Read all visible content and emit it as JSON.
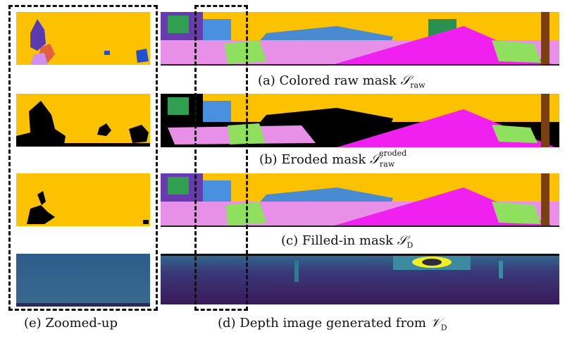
{
  "captions": {
    "a_text": "(a) Colored raw mask ",
    "a_sym": "𝒮",
    "a_sub": "raw",
    "b_text": "(b) Eroded mask ",
    "b_sym": "𝒮",
    "b_sub": "raw",
    "b_sup": "eroded",
    "c_text": "(c) Filled-in mask ",
    "c_sym": "𝒮",
    "c_sub": "D",
    "d_text": "(d) Depth image generated from ",
    "d_sym": "𝒱",
    "d_sub": "D",
    "e_text": "(e) Zoomed-up"
  },
  "colors": {
    "yellow": "#fcc200",
    "magenta": "#f020f0",
    "pink": "#e890e8",
    "green": "#90e060",
    "blue": "#4a90e0",
    "purple": "#6a3ab0",
    "brown": "#7a4010",
    "black": "#000000",
    "depth_dark": "#3b1a5a",
    "depth_mid": "#2c6e8e",
    "depth_teal": "#3a8aa0",
    "depth_yellow": "#f0f020"
  }
}
